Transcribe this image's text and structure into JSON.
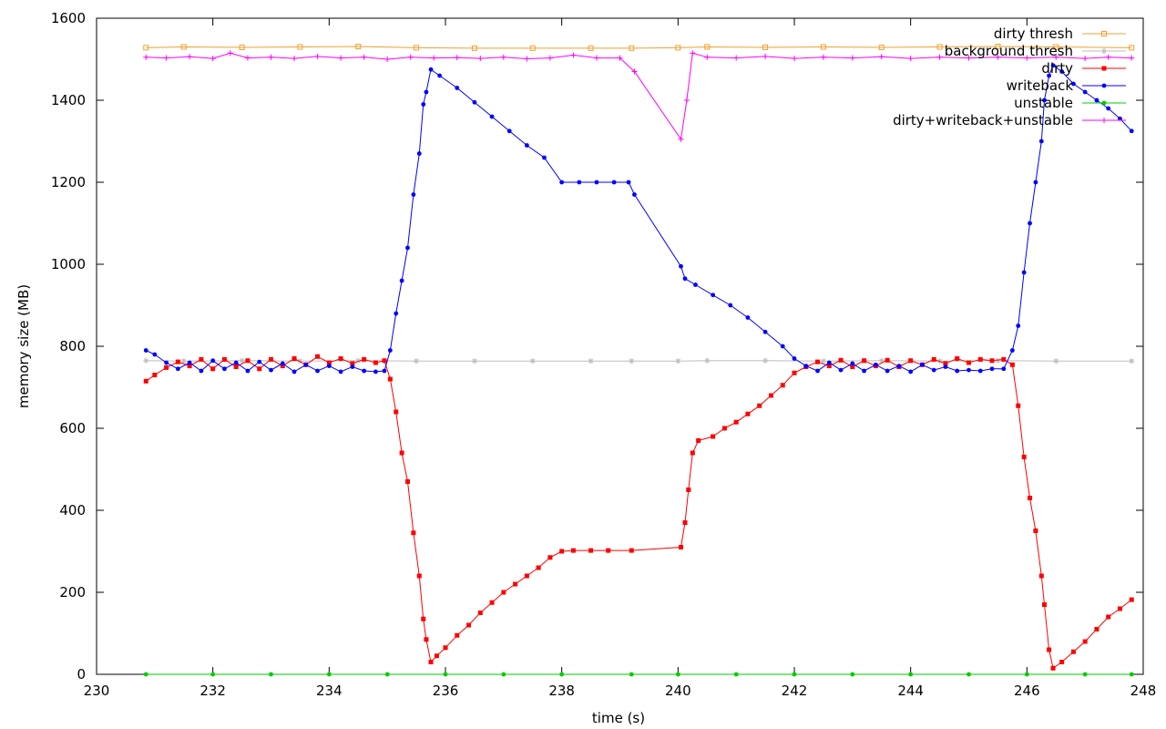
{
  "chart_data": {
    "type": "line",
    "title": "",
    "xlabel": "time (s)",
    "ylabel": "memory size (MB)",
    "xlim": [
      230,
      248
    ],
    "ylim": [
      0,
      1600
    ],
    "xticks": [
      230,
      232,
      234,
      236,
      238,
      240,
      242,
      244,
      246,
      248
    ],
    "yticks": [
      0,
      200,
      400,
      600,
      800,
      1000,
      1200,
      1400,
      1600
    ],
    "grid": false,
    "legend_position": "top-right",
    "series": [
      {
        "name": "dirty thresh",
        "color": "#f0a030",
        "marker": "square-open",
        "points": [
          [
            230.85,
            1528
          ],
          [
            231.5,
            1530
          ],
          [
            232.5,
            1529
          ],
          [
            233.5,
            1530
          ],
          [
            234.5,
            1531
          ],
          [
            235.5,
            1528
          ],
          [
            236.5,
            1527
          ],
          [
            237.5,
            1527
          ],
          [
            238.5,
            1527
          ],
          [
            239.2,
            1527
          ],
          [
            240.0,
            1528
          ],
          [
            240.5,
            1530
          ],
          [
            241.5,
            1529
          ],
          [
            242.5,
            1530
          ],
          [
            243.5,
            1529
          ],
          [
            244.5,
            1530
          ],
          [
            245.5,
            1531
          ],
          [
            246.5,
            1530
          ],
          [
            247.8,
            1528
          ]
        ]
      },
      {
        "name": "background thresh",
        "color": "#bebebe",
        "marker": "star",
        "points": [
          [
            230.85,
            765
          ],
          [
            231.5,
            764
          ],
          [
            232.5,
            765
          ],
          [
            233.5,
            764
          ],
          [
            234.5,
            765
          ],
          [
            235.5,
            764
          ],
          [
            236.5,
            764
          ],
          [
            237.5,
            764
          ],
          [
            238.5,
            764
          ],
          [
            239.2,
            764
          ],
          [
            240.0,
            764
          ],
          [
            240.5,
            765
          ],
          [
            241.5,
            765
          ],
          [
            242.5,
            764
          ],
          [
            243.5,
            765
          ],
          [
            244.5,
            764
          ],
          [
            245.5,
            765
          ],
          [
            246.5,
            764
          ],
          [
            247.8,
            764
          ]
        ]
      },
      {
        "name": "dirty",
        "color": "#ff0000",
        "marker": "square-filled",
        "points": [
          [
            230.85,
            715
          ],
          [
            231.0,
            730
          ],
          [
            231.2,
            748
          ],
          [
            231.4,
            762
          ],
          [
            231.6,
            752
          ],
          [
            231.8,
            768
          ],
          [
            232.0,
            745
          ],
          [
            232.2,
            768
          ],
          [
            232.4,
            750
          ],
          [
            232.6,
            765
          ],
          [
            232.8,
            745
          ],
          [
            233.0,
            768
          ],
          [
            233.2,
            752
          ],
          [
            233.4,
            770
          ],
          [
            233.6,
            755
          ],
          [
            233.8,
            775
          ],
          [
            234.0,
            760
          ],
          [
            234.2,
            770
          ],
          [
            234.4,
            758
          ],
          [
            234.6,
            768
          ],
          [
            234.8,
            760
          ],
          [
            234.95,
            765
          ],
          [
            235.05,
            720
          ],
          [
            235.15,
            640
          ],
          [
            235.25,
            540
          ],
          [
            235.35,
            470
          ],
          [
            235.45,
            345
          ],
          [
            235.55,
            240
          ],
          [
            235.62,
            135
          ],
          [
            235.67,
            85
          ],
          [
            235.75,
            30
          ],
          [
            235.85,
            45
          ],
          [
            236.0,
            65
          ],
          [
            236.2,
            95
          ],
          [
            236.4,
            120
          ],
          [
            236.6,
            150
          ],
          [
            236.8,
            175
          ],
          [
            237.0,
            200
          ],
          [
            237.2,
            220
          ],
          [
            237.4,
            240
          ],
          [
            237.6,
            260
          ],
          [
            237.8,
            285
          ],
          [
            238.0,
            300
          ],
          [
            238.2,
            302
          ],
          [
            238.5,
            302
          ],
          [
            238.8,
            302
          ],
          [
            239.2,
            302
          ],
          [
            240.05,
            310
          ],
          [
            240.12,
            370
          ],
          [
            240.18,
            450
          ],
          [
            240.25,
            540
          ],
          [
            240.35,
            570
          ],
          [
            240.6,
            580
          ],
          [
            240.8,
            600
          ],
          [
            241.0,
            615
          ],
          [
            241.2,
            635
          ],
          [
            241.4,
            655
          ],
          [
            241.6,
            680
          ],
          [
            241.8,
            705
          ],
          [
            242.0,
            735
          ],
          [
            242.2,
            750
          ],
          [
            242.4,
            762
          ],
          [
            242.6,
            752
          ],
          [
            242.8,
            766
          ],
          [
            243.0,
            750
          ],
          [
            243.2,
            765
          ],
          [
            243.4,
            752
          ],
          [
            243.6,
            766
          ],
          [
            243.8,
            750
          ],
          [
            244.0,
            765
          ],
          [
            244.2,
            755
          ],
          [
            244.4,
            768
          ],
          [
            244.6,
            758
          ],
          [
            244.8,
            770
          ],
          [
            245.0,
            760
          ],
          [
            245.2,
            768
          ],
          [
            245.4,
            765
          ],
          [
            245.6,
            768
          ],
          [
            245.75,
            755
          ],
          [
            245.85,
            655
          ],
          [
            245.95,
            530
          ],
          [
            246.05,
            430
          ],
          [
            246.15,
            350
          ],
          [
            246.25,
            240
          ],
          [
            246.3,
            170
          ],
          [
            246.38,
            60
          ],
          [
            246.45,
            15
          ],
          [
            246.6,
            30
          ],
          [
            246.8,
            55
          ],
          [
            247.0,
            80
          ],
          [
            247.2,
            110
          ],
          [
            247.4,
            140
          ],
          [
            247.6,
            160
          ],
          [
            247.8,
            182
          ]
        ]
      },
      {
        "name": "writeback",
        "color": "#0000ff",
        "marker": "circle-filled",
        "points": [
          [
            230.85,
            790
          ],
          [
            231.0,
            780
          ],
          [
            231.2,
            760
          ],
          [
            231.4,
            745
          ],
          [
            231.6,
            760
          ],
          [
            231.8,
            740
          ],
          [
            232.0,
            765
          ],
          [
            232.2,
            745
          ],
          [
            232.4,
            760
          ],
          [
            232.6,
            740
          ],
          [
            232.8,
            762
          ],
          [
            233.0,
            742
          ],
          [
            233.2,
            758
          ],
          [
            233.4,
            738
          ],
          [
            233.6,
            755
          ],
          [
            233.8,
            740
          ],
          [
            234.0,
            752
          ],
          [
            234.2,
            738
          ],
          [
            234.4,
            750
          ],
          [
            234.6,
            740
          ],
          [
            234.8,
            738
          ],
          [
            234.95,
            740
          ],
          [
            235.05,
            790
          ],
          [
            235.15,
            880
          ],
          [
            235.25,
            960
          ],
          [
            235.35,
            1040
          ],
          [
            235.45,
            1170
          ],
          [
            235.55,
            1270
          ],
          [
            235.62,
            1390
          ],
          [
            235.67,
            1420
          ],
          [
            235.75,
            1475
          ],
          [
            235.9,
            1460
          ],
          [
            236.2,
            1430
          ],
          [
            236.5,
            1395
          ],
          [
            236.8,
            1360
          ],
          [
            237.1,
            1325
          ],
          [
            237.4,
            1290
          ],
          [
            237.7,
            1260
          ],
          [
            238.0,
            1200
          ],
          [
            238.3,
            1200
          ],
          [
            238.6,
            1200
          ],
          [
            238.9,
            1200
          ],
          [
            239.15,
            1200
          ],
          [
            239.25,
            1170
          ],
          [
            240.05,
            995
          ],
          [
            240.12,
            965
          ],
          [
            240.3,
            950
          ],
          [
            240.6,
            925
          ],
          [
            240.9,
            900
          ],
          [
            241.2,
            870
          ],
          [
            241.5,
            835
          ],
          [
            241.8,
            800
          ],
          [
            242.0,
            770
          ],
          [
            242.2,
            752
          ],
          [
            242.4,
            740
          ],
          [
            242.6,
            760
          ],
          [
            242.8,
            742
          ],
          [
            243.0,
            758
          ],
          [
            243.2,
            740
          ],
          [
            243.4,
            755
          ],
          [
            243.6,
            740
          ],
          [
            243.8,
            752
          ],
          [
            244.0,
            738
          ],
          [
            244.2,
            755
          ],
          [
            244.4,
            742
          ],
          [
            244.6,
            750
          ],
          [
            244.8,
            740
          ],
          [
            245.0,
            742
          ],
          [
            245.2,
            740
          ],
          [
            245.4,
            745
          ],
          [
            245.6,
            745
          ],
          [
            245.75,
            790
          ],
          [
            245.85,
            850
          ],
          [
            245.95,
            980
          ],
          [
            246.05,
            1100
          ],
          [
            246.15,
            1200
          ],
          [
            246.25,
            1300
          ],
          [
            246.3,
            1400
          ],
          [
            246.38,
            1460
          ],
          [
            246.45,
            1485
          ],
          [
            246.6,
            1470
          ],
          [
            246.8,
            1440
          ],
          [
            247.0,
            1420
          ],
          [
            247.2,
            1400
          ],
          [
            247.4,
            1380
          ],
          [
            247.6,
            1355
          ],
          [
            247.8,
            1325
          ]
        ]
      },
      {
        "name": "unstable",
        "color": "#00cc00",
        "marker": "circle-filled",
        "points": [
          [
            230.85,
            0
          ],
          [
            232.0,
            0
          ],
          [
            233.0,
            0
          ],
          [
            234.0,
            0
          ],
          [
            235.0,
            0
          ],
          [
            236.0,
            0
          ],
          [
            237.0,
            0
          ],
          [
            238.0,
            0
          ],
          [
            239.2,
            0
          ],
          [
            240.0,
            0
          ],
          [
            241.0,
            0
          ],
          [
            242.0,
            0
          ],
          [
            243.0,
            0
          ],
          [
            244.0,
            0
          ],
          [
            245.0,
            0
          ],
          [
            246.0,
            0
          ],
          [
            247.0,
            0
          ],
          [
            247.8,
            0
          ]
        ]
      },
      {
        "name": "dirty+writeback+unstable",
        "color": "#ff00ff",
        "marker": "plus",
        "points": [
          [
            230.85,
            1505
          ],
          [
            231.2,
            1503
          ],
          [
            231.6,
            1506
          ],
          [
            232.0,
            1502
          ],
          [
            232.3,
            1515
          ],
          [
            232.6,
            1503
          ],
          [
            233.0,
            1505
          ],
          [
            233.4,
            1502
          ],
          [
            233.8,
            1507
          ],
          [
            234.2,
            1503
          ],
          [
            234.6,
            1505
          ],
          [
            235.0,
            1500
          ],
          [
            235.4,
            1505
          ],
          [
            235.8,
            1503
          ],
          [
            236.2,
            1504
          ],
          [
            236.6,
            1502
          ],
          [
            237.0,
            1505
          ],
          [
            237.4,
            1501
          ],
          [
            237.8,
            1503
          ],
          [
            238.2,
            1510
          ],
          [
            238.6,
            1503
          ],
          [
            239.0,
            1503
          ],
          [
            239.25,
            1470
          ],
          [
            240.05,
            1305
          ],
          [
            240.15,
            1400
          ],
          [
            240.25,
            1515
          ],
          [
            240.5,
            1505
          ],
          [
            241.0,
            1503
          ],
          [
            241.5,
            1507
          ],
          [
            242.0,
            1502
          ],
          [
            242.5,
            1505
          ],
          [
            243.0,
            1503
          ],
          [
            243.5,
            1506
          ],
          [
            244.0,
            1502
          ],
          [
            244.5,
            1505
          ],
          [
            245.0,
            1503
          ],
          [
            245.5,
            1505
          ],
          [
            246.0,
            1503
          ],
          [
            246.5,
            1505
          ],
          [
            247.0,
            1502
          ],
          [
            247.4,
            1505
          ],
          [
            247.8,
            1503
          ]
        ]
      }
    ]
  }
}
